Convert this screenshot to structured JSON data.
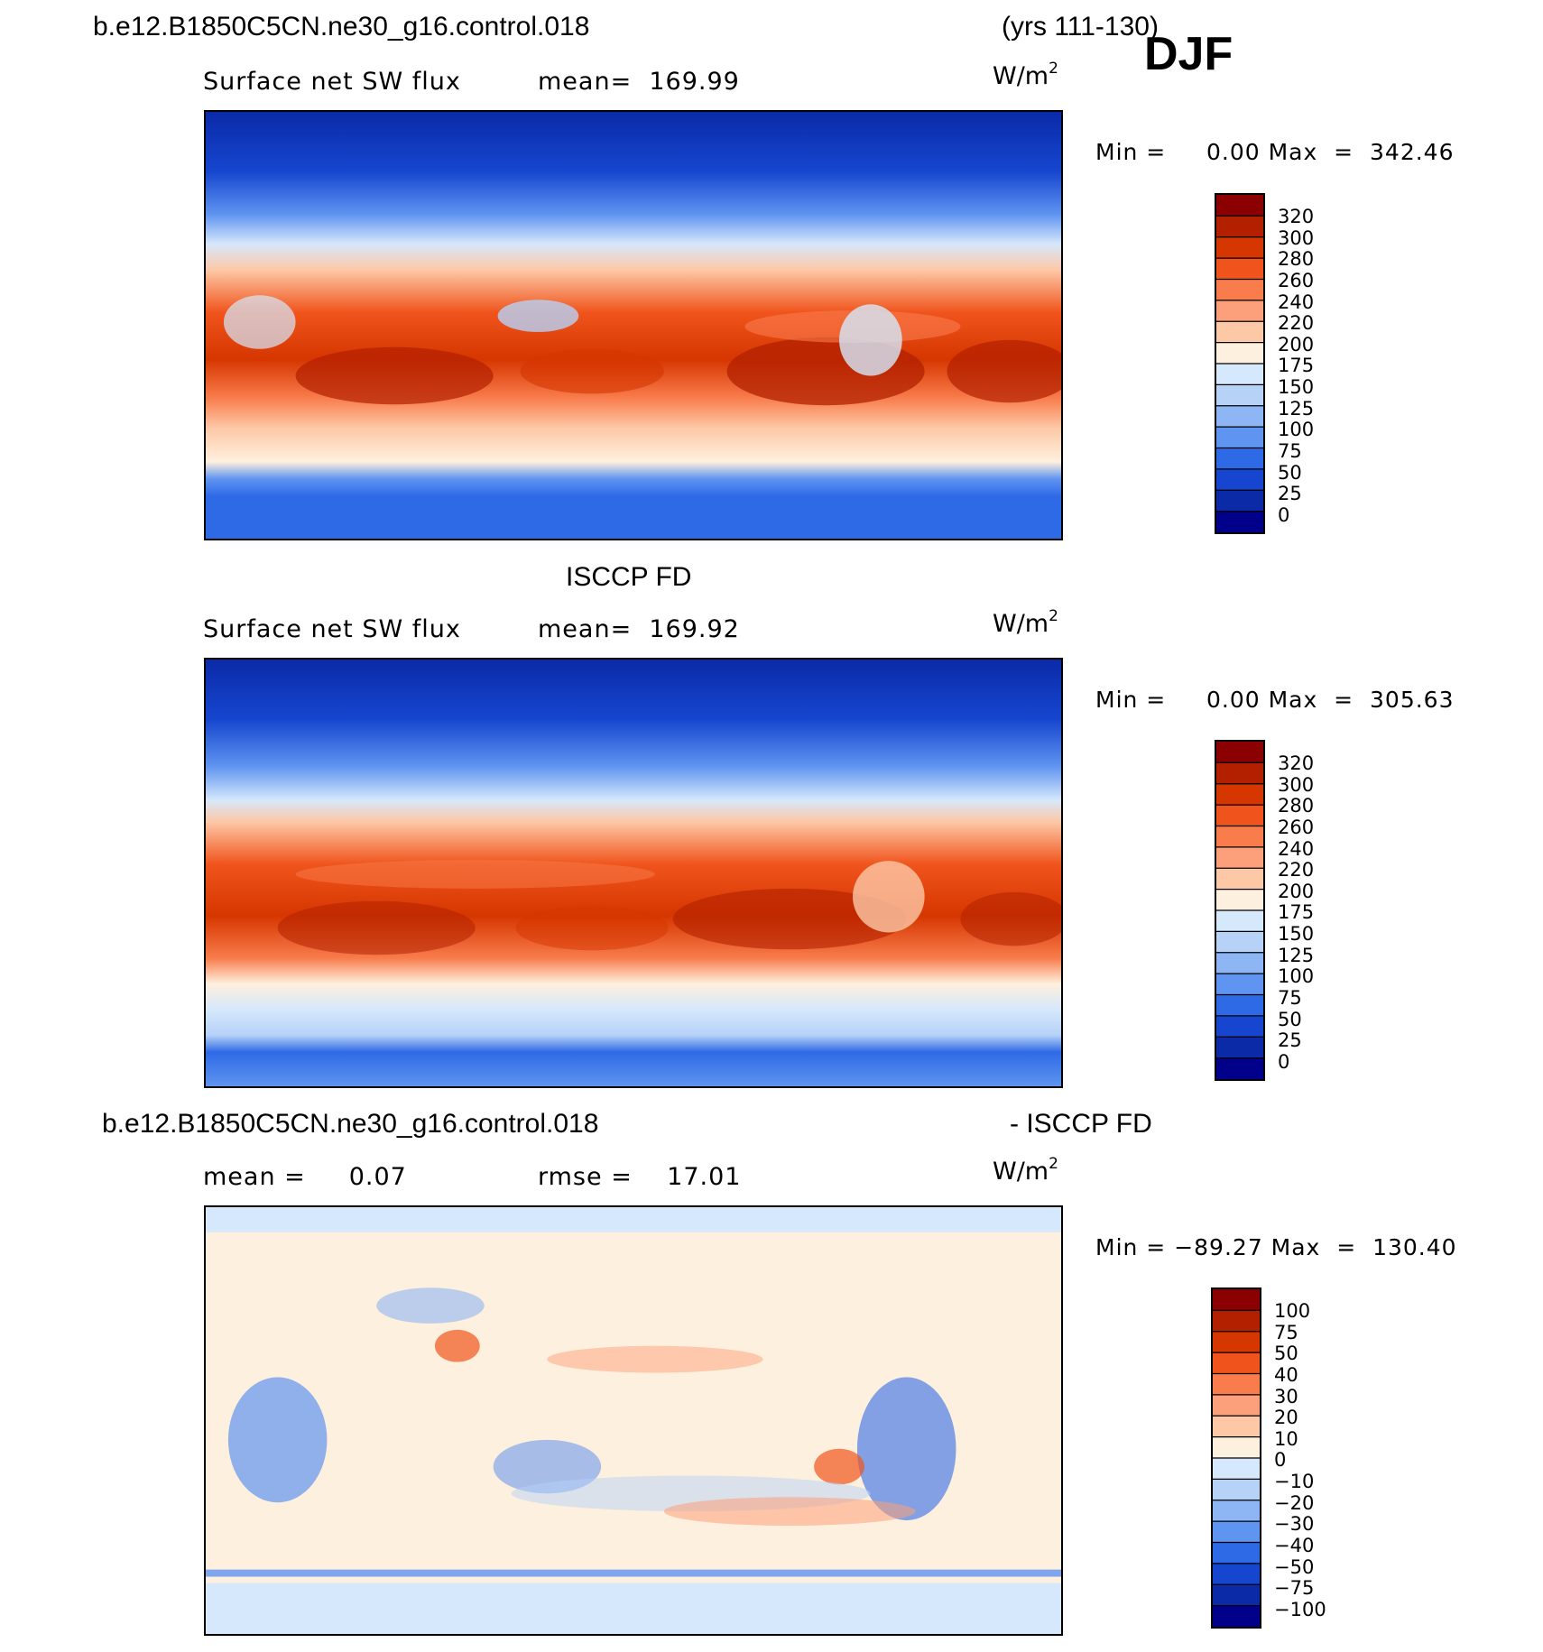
{
  "header": {
    "case_name": "b.e12.B1850C5CN.ne30_g16.control.018",
    "years": "(yrs 111-130)",
    "season": "DJF"
  },
  "panels": [
    {
      "id": "model",
      "title": "",
      "variable": "Surface net SW flux",
      "stat": "mean=  169.99",
      "units": "W/m",
      "units_sup": "2",
      "minmax": "Min =     0.00 Max  =  342.46",
      "colorbar_labels": [
        "320",
        "300",
        "280",
        "260",
        "240",
        "220",
        "200",
        "175",
        "150",
        "125",
        "100",
        "75",
        "50",
        "25",
        "0"
      ]
    },
    {
      "id": "obs",
      "title": "ISCCP FD",
      "variable": "Surface net SW flux",
      "stat": "mean=  169.92",
      "units": "W/m",
      "units_sup": "2",
      "minmax": "Min =     0.00 Max  =  305.63",
      "colorbar_labels": [
        "320",
        "300",
        "280",
        "260",
        "240",
        "220",
        "200",
        "175",
        "150",
        "125",
        "100",
        "75",
        "50",
        "25",
        "0"
      ]
    },
    {
      "id": "diff",
      "title_left": "b.e12.B1850C5CN.ne30_g16.control.018",
      "title_right": "- ISCCP FD",
      "stat_left": "mean =     0.07",
      "stat_right": "rmse =    17.01",
      "units": "W/m",
      "units_sup": "2",
      "minmax": "Min = −89.27 Max  =  130.40",
      "colorbar_labels": [
        "100",
        "75",
        "50",
        "40",
        "30",
        "20",
        "10",
        "0",
        "−10",
        "−20",
        "−30",
        "−40",
        "−50",
        "−75",
        "−100"
      ]
    }
  ],
  "colors": {
    "ramp_top_to_bottom": [
      "#8b0000",
      "#b22000",
      "#d63600",
      "#f0541c",
      "#f87c4c",
      "#fba07a",
      "#fdc8a6",
      "#fef0de",
      "#d6e8fb",
      "#b6d2f7",
      "#8eb6f4",
      "#5f94f0",
      "#2f6ae6",
      "#1646cf",
      "#0a2aa8",
      "#00008b"
    ]
  }
}
